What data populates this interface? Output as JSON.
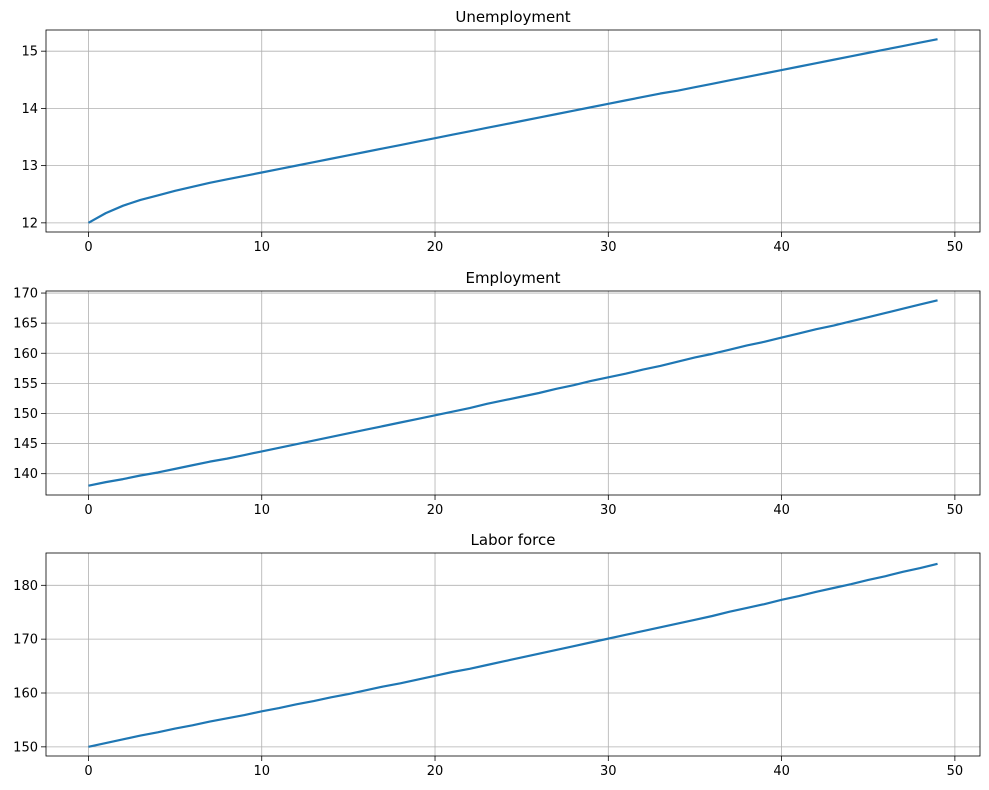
{
  "chart_data": [
    {
      "type": "line",
      "title": "Unemployment",
      "color": "#1f77b4",
      "grid": true,
      "x": [
        0,
        1,
        2,
        3,
        4,
        5,
        6,
        7,
        8,
        9,
        10,
        11,
        12,
        13,
        14,
        15,
        16,
        17,
        18,
        19,
        20,
        21,
        22,
        23,
        24,
        25,
        26,
        27,
        28,
        29,
        30,
        31,
        32,
        33,
        34,
        35,
        36,
        37,
        38,
        39,
        40,
        41,
        42,
        43,
        44,
        45,
        46,
        47,
        48,
        49
      ],
      "values": [
        12.0,
        12.17,
        12.3,
        12.4,
        12.48,
        12.56,
        12.63,
        12.7,
        12.76,
        12.82,
        12.88,
        12.94,
        13.0,
        13.06,
        13.12,
        13.18,
        13.24,
        13.3,
        13.36,
        13.42,
        13.48,
        13.54,
        13.6,
        13.66,
        13.72,
        13.78,
        13.84,
        13.9,
        13.96,
        14.02,
        14.08,
        14.14,
        14.2,
        14.26,
        14.31,
        14.37,
        14.43,
        14.49,
        14.55,
        14.61,
        14.67,
        14.73,
        14.79,
        14.85,
        14.91,
        14.97,
        15.03,
        15.09,
        15.15,
        15.21
      ],
      "xlim": [
        -2.45,
        51.45
      ],
      "xticks": [
        0,
        10,
        20,
        30,
        40,
        50
      ],
      "ylim": [
        11.84,
        15.37
      ],
      "yticks": [
        12,
        13,
        14,
        15
      ]
    },
    {
      "type": "line",
      "title": "Employment",
      "color": "#1f77b4",
      "grid": true,
      "x": [
        0,
        1,
        2,
        3,
        4,
        5,
        6,
        7,
        8,
        9,
        10,
        11,
        12,
        13,
        14,
        15,
        16,
        17,
        18,
        19,
        20,
        21,
        22,
        23,
        24,
        25,
        26,
        27,
        28,
        29,
        30,
        31,
        32,
        33,
        34,
        35,
        36,
        37,
        38,
        39,
        40,
        41,
        42,
        43,
        44,
        45,
        46,
        47,
        48,
        49
      ],
      "values": [
        138.0,
        138.6,
        139.1,
        139.7,
        140.2,
        140.8,
        141.4,
        142.0,
        142.5,
        143.1,
        143.7,
        144.3,
        144.9,
        145.5,
        146.1,
        146.7,
        147.3,
        147.9,
        148.5,
        149.1,
        149.7,
        150.3,
        150.9,
        151.6,
        152.2,
        152.8,
        153.4,
        154.1,
        154.7,
        155.4,
        156.0,
        156.6,
        157.3,
        157.9,
        158.6,
        159.3,
        159.9,
        160.6,
        161.3,
        161.9,
        162.6,
        163.3,
        164.0,
        164.6,
        165.3,
        166.0,
        166.7,
        167.4,
        168.1,
        168.8
      ],
      "xlim": [
        -2.45,
        51.45
      ],
      "xticks": [
        0,
        10,
        20,
        30,
        40,
        50
      ],
      "ylim": [
        136.46,
        170.34
      ],
      "yticks": [
        140,
        145,
        150,
        155,
        160,
        165,
        170
      ]
    },
    {
      "type": "line",
      "title": "Labor force",
      "color": "#1f77b4",
      "grid": true,
      "x": [
        0,
        1,
        2,
        3,
        4,
        5,
        6,
        7,
        8,
        9,
        10,
        11,
        12,
        13,
        14,
        15,
        16,
        17,
        18,
        19,
        20,
        21,
        22,
        23,
        24,
        25,
        26,
        27,
        28,
        29,
        30,
        31,
        32,
        33,
        34,
        35,
        36,
        37,
        38,
        39,
        40,
        41,
        42,
        43,
        44,
        45,
        46,
        47,
        48,
        49
      ],
      "values": [
        150.0,
        150.7,
        151.4,
        152.1,
        152.7,
        153.4,
        154.0,
        154.7,
        155.3,
        155.9,
        156.6,
        157.2,
        157.9,
        158.5,
        159.2,
        159.8,
        160.5,
        161.2,
        161.8,
        162.5,
        163.2,
        163.9,
        164.5,
        165.2,
        165.9,
        166.6,
        167.3,
        168.0,
        168.7,
        169.4,
        170.1,
        170.8,
        171.5,
        172.2,
        172.9,
        173.6,
        174.3,
        175.1,
        175.8,
        176.5,
        177.3,
        178.0,
        178.8,
        179.5,
        180.2,
        181.0,
        181.7,
        182.5,
        183.2,
        184.0
      ],
      "xlim": [
        -2.45,
        51.45
      ],
      "xticks": [
        0,
        10,
        20,
        30,
        40,
        50
      ],
      "ylim": [
        148.3,
        186.0
      ],
      "yticks": [
        150,
        160,
        170,
        180
      ]
    }
  ]
}
